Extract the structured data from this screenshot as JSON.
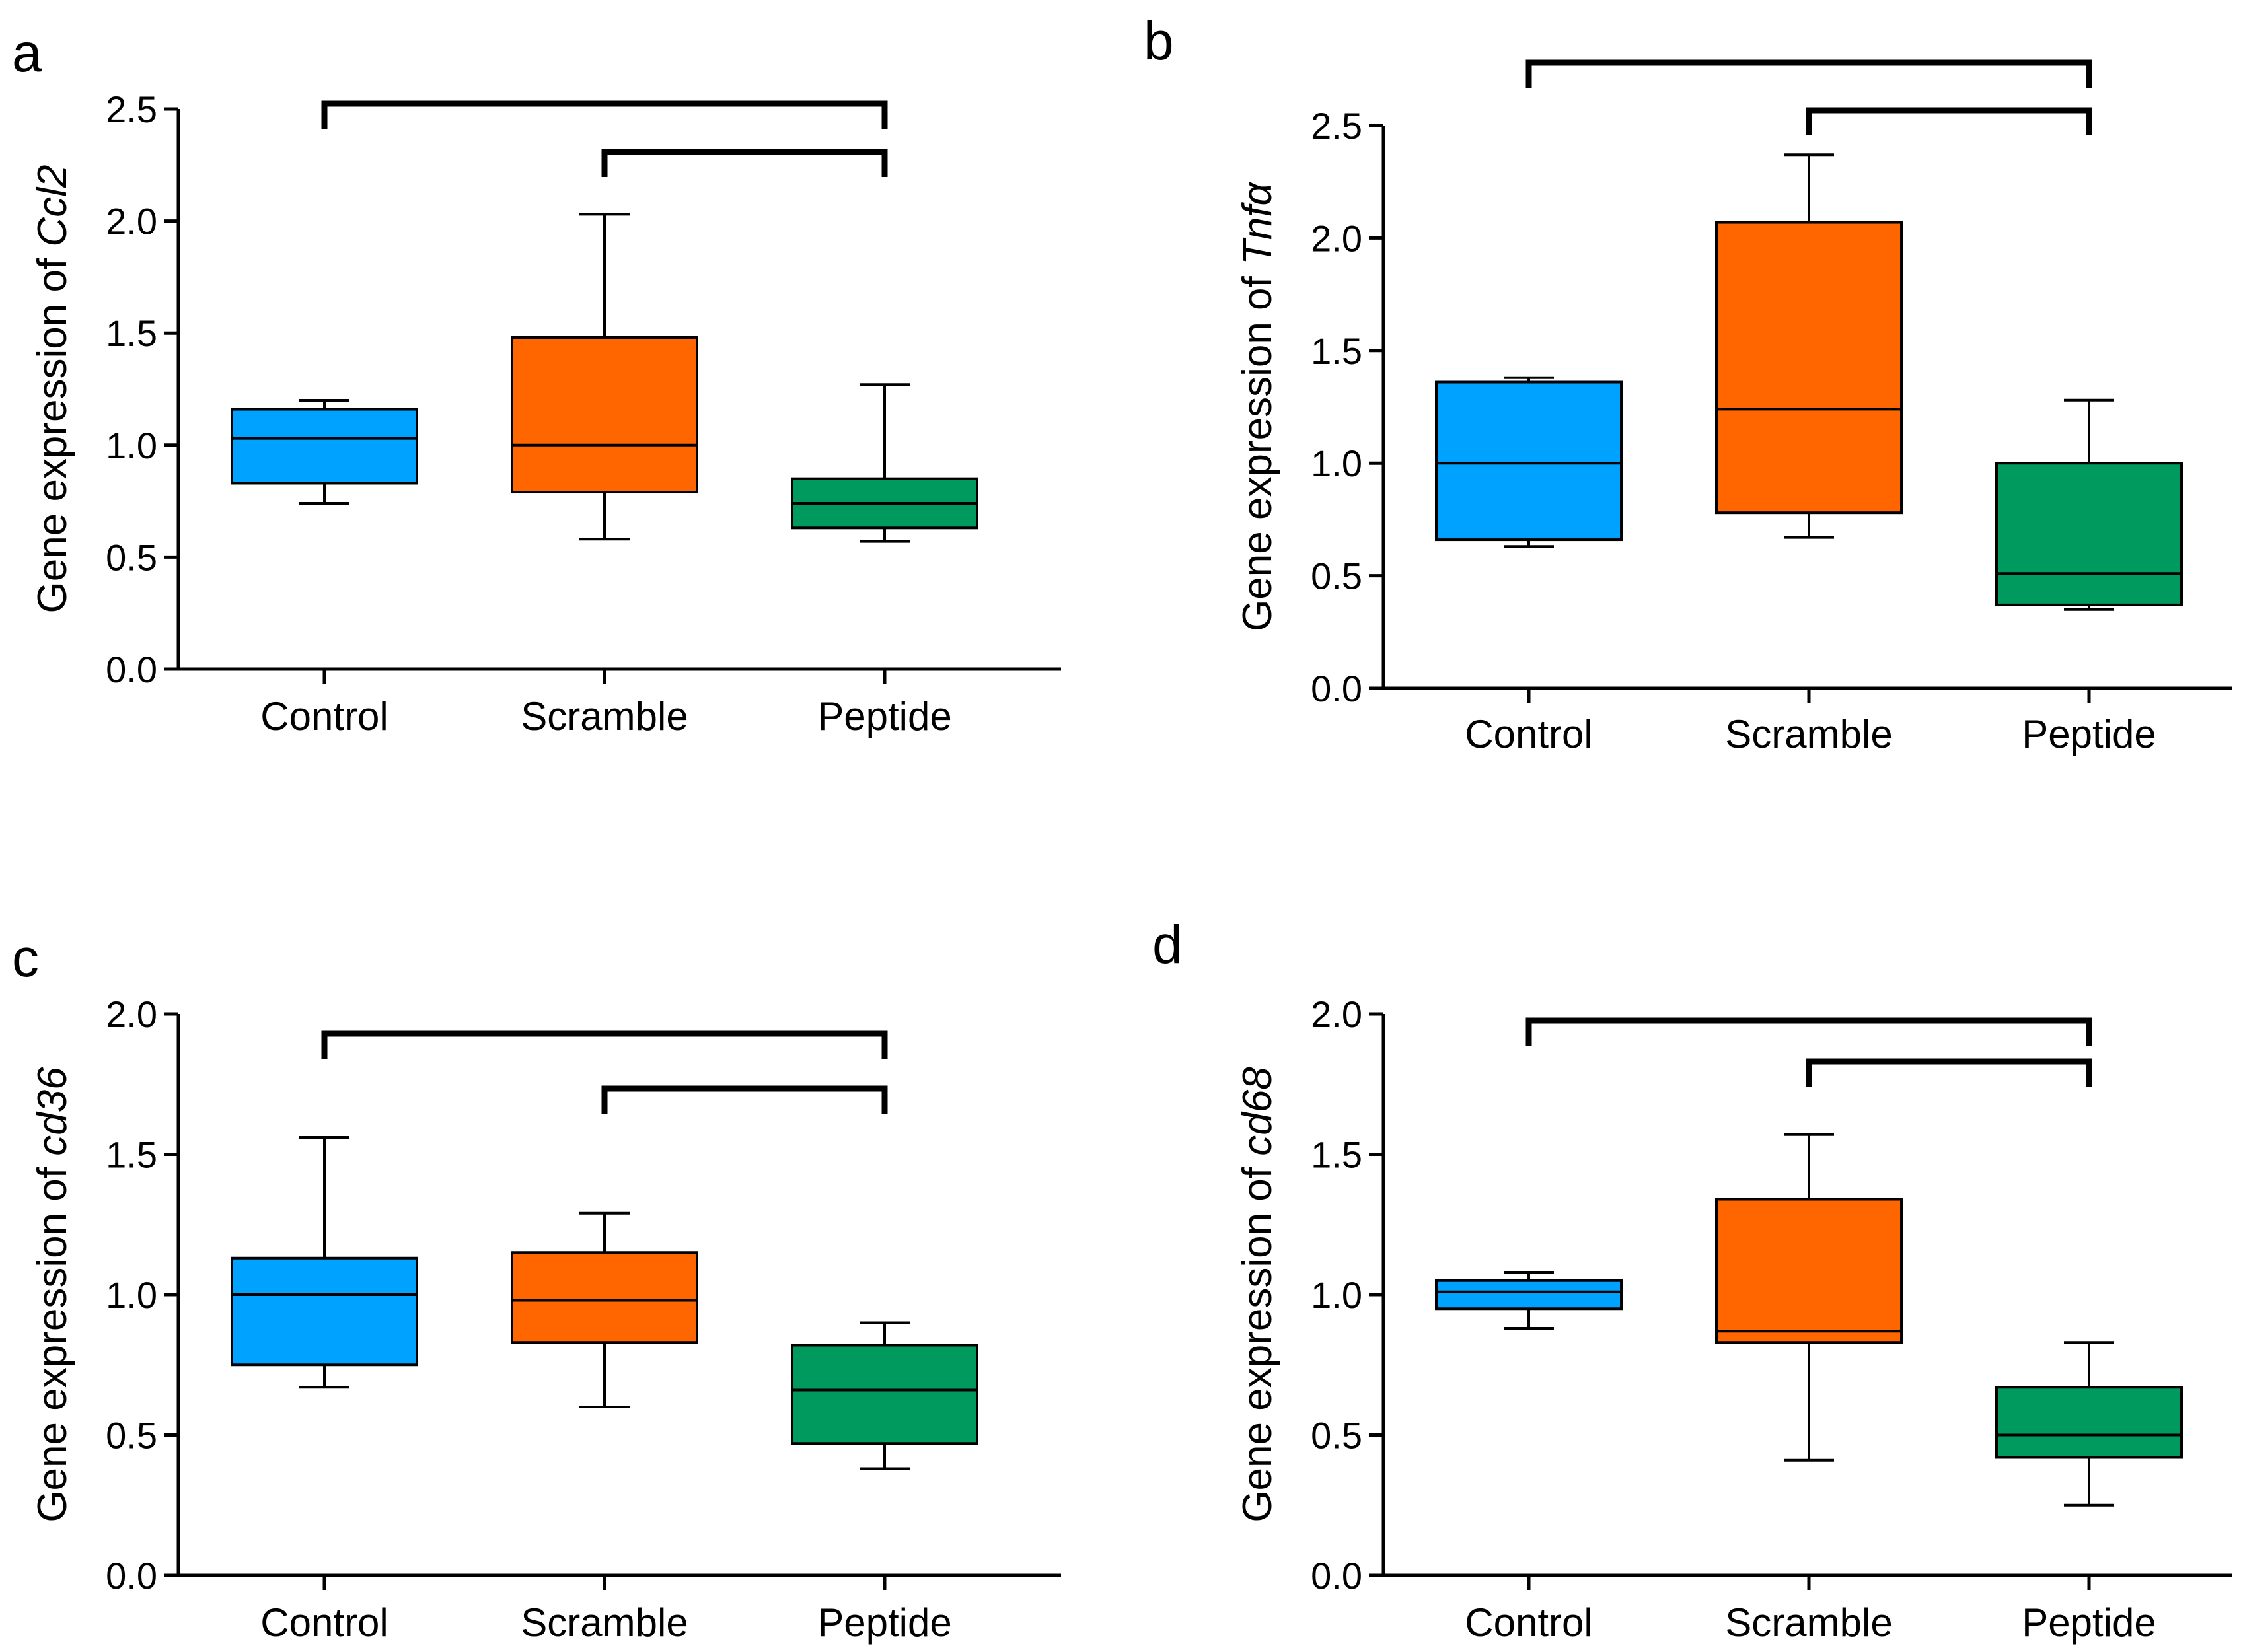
{
  "chart_data": [
    {
      "panel": "a",
      "type": "box",
      "ylabel_prefix": "Gene expression of ",
      "ylabel_gene": "Ccl2",
      "ylim": [
        0,
        2.5
      ],
      "ticks": [
        "0.0",
        "0.5",
        "1.0",
        "1.5",
        "2.0",
        "2.5"
      ],
      "tick_values": [
        0,
        0.5,
        1.0,
        1.5,
        2.0,
        2.5
      ],
      "categories": [
        "Control",
        "Scramble",
        "Peptide"
      ],
      "colors": [
        "#00a2ff",
        "#ff6600",
        "#009a5e"
      ],
      "boxes": [
        {
          "min": 0.74,
          "q1": 0.83,
          "median": 1.03,
          "q3": 1.16,
          "max": 1.2
        },
        {
          "min": 0.58,
          "q1": 0.79,
          "median": 1.0,
          "q3": 1.48,
          "max": 2.03
        },
        {
          "min": 0.57,
          "q1": 0.63,
          "median": 0.74,
          "q3": 0.85,
          "max": 1.27
        }
      ],
      "brackets": [
        [
          0,
          2
        ],
        [
          1,
          2
        ]
      ]
    },
    {
      "panel": "b",
      "type": "box",
      "ylabel_prefix": "Gene expression of ",
      "ylabel_gene": "Tnfα",
      "ylim": [
        0,
        2.5
      ],
      "ticks": [
        "0.0",
        "0.5",
        "1.0",
        "1.5",
        "2.0",
        "2.5"
      ],
      "tick_values": [
        0,
        0.5,
        1.0,
        1.5,
        2.0,
        2.5
      ],
      "categories": [
        "Control",
        "Scramble",
        "Peptide"
      ],
      "colors": [
        "#00a2ff",
        "#ff6600",
        "#009a5e"
      ],
      "boxes": [
        {
          "min": 0.63,
          "q1": 0.66,
          "median": 1.0,
          "q3": 1.36,
          "max": 1.38
        },
        {
          "min": 0.67,
          "q1": 0.78,
          "median": 1.24,
          "q3": 2.07,
          "max": 2.37
        },
        {
          "min": 0.35,
          "q1": 0.37,
          "median": 0.51,
          "q3": 1.0,
          "max": 1.28
        }
      ],
      "brackets": [
        [
          0,
          2
        ],
        [
          1,
          2
        ]
      ]
    },
    {
      "panel": "c",
      "type": "box",
      "ylabel_prefix": "Gene expression of ",
      "ylabel_gene": "cd36",
      "ylim": [
        0,
        2.0
      ],
      "ticks": [
        "0.0",
        "0.5",
        "1.0",
        "1.5",
        "2.0"
      ],
      "tick_values": [
        0,
        0.5,
        1.0,
        1.5,
        2.0
      ],
      "categories": [
        "Control",
        "Scramble",
        "Peptide"
      ],
      "colors": [
        "#00a2ff",
        "#ff6600",
        "#009a5e"
      ],
      "boxes": [
        {
          "min": 0.67,
          "q1": 0.75,
          "median": 1.0,
          "q3": 1.13,
          "max": 1.56
        },
        {
          "min": 0.6,
          "q1": 0.83,
          "median": 0.98,
          "q3": 1.15,
          "max": 1.29
        },
        {
          "min": 0.38,
          "q1": 0.47,
          "median": 0.66,
          "q3": 0.82,
          "max": 0.9
        }
      ],
      "brackets": [
        [
          0,
          2
        ],
        [
          1,
          2
        ]
      ]
    },
    {
      "panel": "d",
      "type": "box",
      "ylabel_prefix": "Gene expression of ",
      "ylabel_gene": "cd68",
      "ylim": [
        0,
        2.0
      ],
      "ticks": [
        "0.0",
        "0.5",
        "1.0",
        "1.5",
        "2.0"
      ],
      "tick_values": [
        0,
        0.5,
        1.0,
        1.5,
        2.0
      ],
      "categories": [
        "Control",
        "Scramble",
        "Peptide"
      ],
      "colors": [
        "#00a2ff",
        "#ff6600",
        "#009a5e"
      ],
      "boxes": [
        {
          "min": 0.88,
          "q1": 0.95,
          "median": 1.01,
          "q3": 1.05,
          "max": 1.08
        },
        {
          "min": 0.41,
          "q1": 0.83,
          "median": 0.87,
          "q3": 1.34,
          "max": 1.57
        },
        {
          "min": 0.25,
          "q1": 0.42,
          "median": 0.5,
          "q3": 0.67,
          "max": 0.83
        }
      ],
      "brackets": [
        [
          0,
          2
        ],
        [
          1,
          2
        ]
      ]
    }
  ]
}
